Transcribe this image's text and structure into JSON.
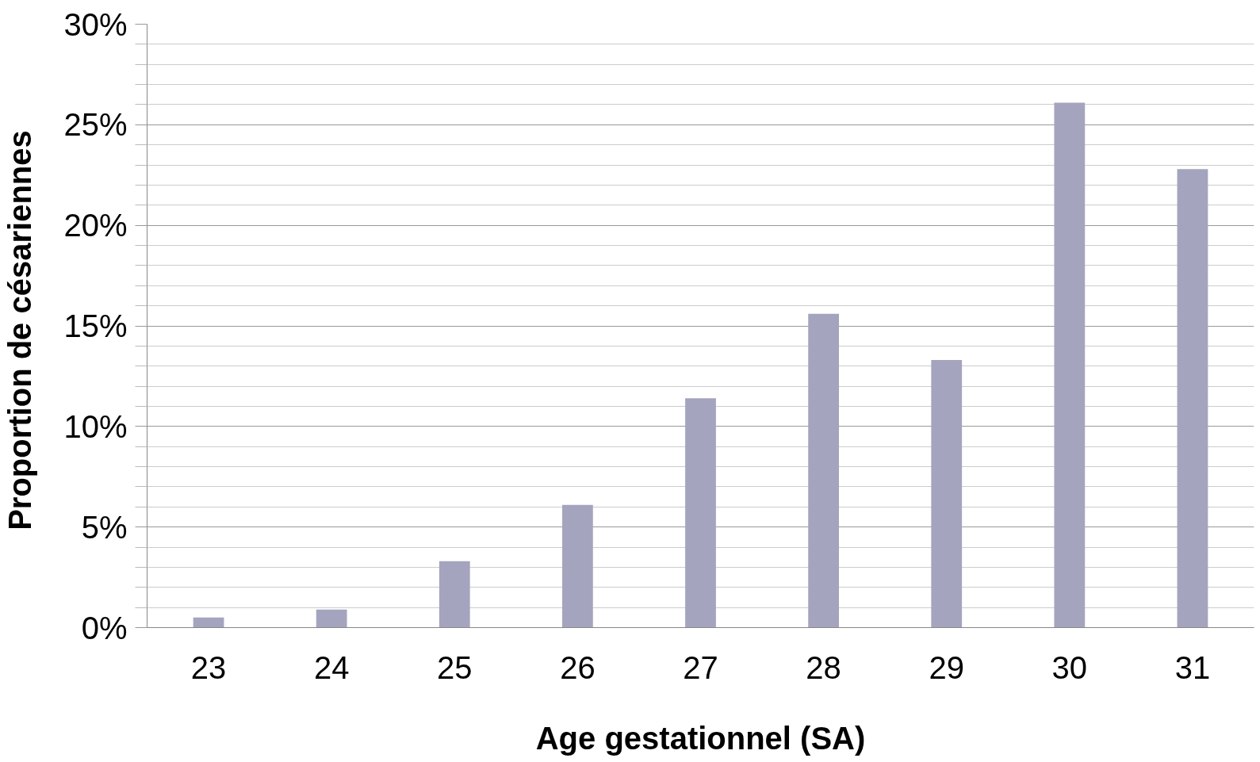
{
  "chart_data": {
    "type": "bar",
    "xlabel": "Age gestationnel (SA)",
    "ylabel": "Proportion  de césariennes",
    "categories": [
      "23",
      "24",
      "25",
      "26",
      "27",
      "28",
      "29",
      "30",
      "31"
    ],
    "values": [
      0.5,
      0.9,
      3.3,
      6.1,
      11.4,
      15.6,
      13.3,
      26.1,
      22.8
    ],
    "color": "#a4a4bf",
    "ylim": [
      0,
      30
    ],
    "yticks": [
      {
        "value": 0,
        "label": "0%"
      },
      {
        "value": 1,
        "label": null
      },
      {
        "value": 2,
        "label": null
      },
      {
        "value": 3,
        "label": null
      },
      {
        "value": 4,
        "label": null
      },
      {
        "value": 5,
        "label": "5%"
      },
      {
        "value": 6,
        "label": null
      },
      {
        "value": 7,
        "label": null
      },
      {
        "value": 8,
        "label": null
      },
      {
        "value": 9,
        "label": null
      },
      {
        "value": 10,
        "label": "10%"
      },
      {
        "value": 11,
        "label": null
      },
      {
        "value": 12,
        "label": null
      },
      {
        "value": 13,
        "label": null
      },
      {
        "value": 14,
        "label": null
      },
      {
        "value": 15,
        "label": "15%"
      },
      {
        "value": 16,
        "label": null
      },
      {
        "value": 17,
        "label": null
      },
      {
        "value": 18,
        "label": null
      },
      {
        "value": 19,
        "label": null
      },
      {
        "value": 20,
        "label": "20%"
      },
      {
        "value": 21,
        "label": null
      },
      {
        "value": 22,
        "label": null
      },
      {
        "value": 23,
        "label": null
      },
      {
        "value": 24,
        "label": null
      },
      {
        "value": 25,
        "label": "25%"
      },
      {
        "value": 26,
        "label": null
      },
      {
        "value": 27,
        "label": null
      },
      {
        "value": 28,
        "label": null
      },
      {
        "value": 29,
        "label": null
      },
      {
        "value": 30,
        "label": "30%"
      }
    ],
    "grid": "y"
  }
}
